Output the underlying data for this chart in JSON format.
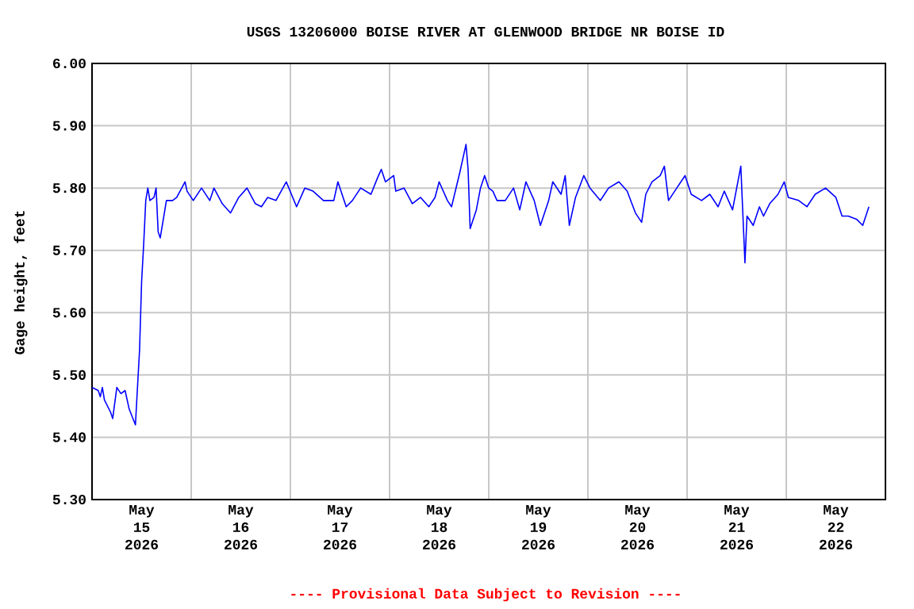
{
  "chart_data": {
    "type": "line",
    "title": "USGS 13206000 BOISE RIVER AT GLENWOOD BRIDGE NR BOISE ID",
    "ylabel": "Gage height, feet",
    "annotations": [
      "---- Provisional Data Subject to Revision ----"
    ],
    "xlim": [
      "2026-05-15T00:00",
      "2026-05-23T00:00"
    ],
    "xticks": [
      {
        "value": "2026-05-15T12:00",
        "label": "May 15 2026"
      },
      {
        "value": "2026-05-16T00:00",
        "label": null
      },
      {
        "value": "2026-05-16T12:00",
        "label": "May 16 2026"
      },
      {
        "value": "2026-05-17T00:00",
        "label": null
      },
      {
        "value": "2026-05-17T12:00",
        "label": "May 17 2026"
      },
      {
        "value": "2026-05-18T00:00",
        "label": null
      },
      {
        "value": "2026-05-18T12:00",
        "label": "May 18 2026"
      },
      {
        "value": "2026-05-19T00:00",
        "label": null
      },
      {
        "value": "2026-05-19T12:00",
        "label": "May 19 2026"
      },
      {
        "value": "2026-05-20T00:00",
        "label": null
      },
      {
        "value": "2026-05-20T12:00",
        "label": "May 20 2026"
      },
      {
        "value": "2026-05-21T00:00",
        "label": null
      },
      {
        "value": "2026-05-21T12:00",
        "label": "May 21 2026"
      },
      {
        "value": "2026-05-22T00:00",
        "label": null
      },
      {
        "value": "2026-05-22T12:00",
        "label": "May 22 2026"
      }
    ],
    "ylim": [
      5.3,
      6.0
    ],
    "yticks": [
      {
        "value": 5.3,
        "label": "5.30"
      },
      {
        "value": 5.4,
        "label": "5.40"
      },
      {
        "value": 5.5,
        "label": "5.50"
      },
      {
        "value": 5.6,
        "label": "5.60"
      },
      {
        "value": 5.7,
        "label": "5.70"
      },
      {
        "value": 5.8,
        "label": "5.80"
      },
      {
        "value": 5.9,
        "label": "5.90"
      },
      {
        "value": 6.0,
        "label": "6.00"
      }
    ],
    "grid": true,
    "marker": "none",
    "line_style": "solid",
    "series": [
      {
        "color": "#0000ff",
        "x": [
          "2026-05-15T00:00",
          "2026-05-15T01:30",
          "2026-05-15T02:00",
          "2026-05-15T02:30",
          "2026-05-15T03:00",
          "2026-05-15T04:30",
          "2026-05-15T05:00",
          "2026-05-15T06:00",
          "2026-05-15T07:00",
          "2026-05-15T08:00",
          "2026-05-15T09:00",
          "2026-05-15T10:30",
          "2026-05-15T11:00",
          "2026-05-15T11:30",
          "2026-05-15T12:00",
          "2026-05-15T12:30",
          "2026-05-15T13:00",
          "2026-05-15T13:30",
          "2026-05-15T14:00",
          "2026-05-15T15:00",
          "2026-05-15T15:30",
          "2026-05-15T16:00",
          "2026-05-15T16:30",
          "2026-05-15T17:30",
          "2026-05-15T18:00",
          "2026-05-15T19:30",
          "2026-05-15T20:30",
          "2026-05-15T22:30",
          "2026-05-15T23:00",
          "2026-05-16T00:30",
          "2026-05-16T02:30",
          "2026-05-16T04:30",
          "2026-05-16T05:30",
          "2026-05-16T07:30",
          "2026-05-16T09:30",
          "2026-05-16T11:30",
          "2026-05-16T13:30",
          "2026-05-16T15:30",
          "2026-05-16T17:00",
          "2026-05-16T18:30",
          "2026-05-16T20:30",
          "2026-05-16T23:00",
          "2026-05-17T01:30",
          "2026-05-17T03:30",
          "2026-05-17T05:30",
          "2026-05-17T08:00",
          "2026-05-17T10:30",
          "2026-05-17T11:30",
          "2026-05-17T13:30",
          "2026-05-17T15:00",
          "2026-05-17T17:00",
          "2026-05-17T19:30",
          "2026-05-17T21:00",
          "2026-05-17T22:00",
          "2026-05-17T23:00",
          "2026-05-18T01:00",
          "2026-05-18T01:30",
          "2026-05-18T03:30",
          "2026-05-18T05:30",
          "2026-05-18T07:30",
          "2026-05-18T09:30",
          "2026-05-18T11:00",
          "2026-05-18T12:00",
          "2026-05-18T14:00",
          "2026-05-18T15:00",
          "2026-05-18T17:00",
          "2026-05-18T18:30",
          "2026-05-18T19:00",
          "2026-05-18T19:30",
          "2026-05-18T21:00",
          "2026-05-18T22:00",
          "2026-05-18T23:00",
          "2026-05-19T00:00",
          "2026-05-19T01:00",
          "2026-05-19T02:00",
          "2026-05-19T04:00",
          "2026-05-19T06:00",
          "2026-05-19T07:30",
          "2026-05-19T09:00",
          "2026-05-19T11:00",
          "2026-05-19T12:30",
          "2026-05-19T14:30",
          "2026-05-19T15:30",
          "2026-05-19T17:30",
          "2026-05-19T18:30",
          "2026-05-19T19:30",
          "2026-05-19T21:00",
          "2026-05-19T23:00",
          "2026-05-20T00:30",
          "2026-05-20T03:00",
          "2026-05-20T05:00",
          "2026-05-20T07:30",
          "2026-05-20T09:30",
          "2026-05-20T11:30",
          "2026-05-20T13:00",
          "2026-05-20T14:00",
          "2026-05-20T15:30",
          "2026-05-20T17:30",
          "2026-05-20T18:30",
          "2026-05-20T19:30",
          "2026-05-20T21:30",
          "2026-05-20T23:30",
          "2026-05-21T01:00",
          "2026-05-21T03:30",
          "2026-05-21T05:30",
          "2026-05-21T07:30",
          "2026-05-21T09:00",
          "2026-05-21T11:00",
          "2026-05-21T12:00",
          "2026-05-21T13:00",
          "2026-05-21T14:00",
          "2026-05-21T14:30",
          "2026-05-21T16:00",
          "2026-05-21T17:30",
          "2026-05-21T18:30",
          "2026-05-21T20:00",
          "2026-05-21T22:00",
          "2026-05-21T23:30",
          "2026-05-22T00:30",
          "2026-05-22T03:00",
          "2026-05-22T05:00",
          "2026-05-22T07:00",
          "2026-05-22T09:30",
          "2026-05-22T12:00",
          "2026-05-22T13:30",
          "2026-05-22T15:00",
          "2026-05-22T17:00",
          "2026-05-22T18:30",
          "2026-05-22T20:00"
        ],
        "values": [
          5.48,
          5.475,
          5.465,
          5.48,
          5.46,
          5.44,
          5.43,
          5.48,
          5.47,
          5.475,
          5.445,
          5.42,
          5.48,
          5.54,
          5.65,
          5.71,
          5.78,
          5.8,
          5.78,
          5.785,
          5.8,
          5.73,
          5.72,
          5.76,
          5.78,
          5.78,
          5.785,
          5.81,
          5.795,
          5.78,
          5.8,
          5.78,
          5.8,
          5.775,
          5.76,
          5.785,
          5.8,
          5.775,
          5.77,
          5.785,
          5.78,
          5.81,
          5.77,
          5.8,
          5.795,
          5.78,
          5.78,
          5.81,
          5.77,
          5.78,
          5.8,
          5.79,
          5.815,
          5.83,
          5.81,
          5.82,
          5.795,
          5.8,
          5.775,
          5.785,
          5.77,
          5.785,
          5.81,
          5.78,
          5.77,
          5.825,
          5.87,
          5.83,
          5.735,
          5.765,
          5.8,
          5.82,
          5.8,
          5.795,
          5.78,
          5.78,
          5.8,
          5.765,
          5.81,
          5.78,
          5.74,
          5.78,
          5.81,
          5.79,
          5.82,
          5.74,
          5.785,
          5.82,
          5.8,
          5.78,
          5.8,
          5.81,
          5.795,
          5.76,
          5.745,
          5.79,
          5.81,
          5.82,
          5.835,
          5.78,
          5.8,
          5.82,
          5.79,
          5.78,
          5.79,
          5.77,
          5.795,
          5.765,
          5.8,
          5.835,
          5.68,
          5.755,
          5.74,
          5.77,
          5.755,
          5.775,
          5.79,
          5.81,
          5.785,
          5.78,
          5.77,
          5.79,
          5.8,
          5.785,
          5.755,
          5.755,
          5.75,
          5.74,
          5.77
        ]
      }
    ]
  }
}
